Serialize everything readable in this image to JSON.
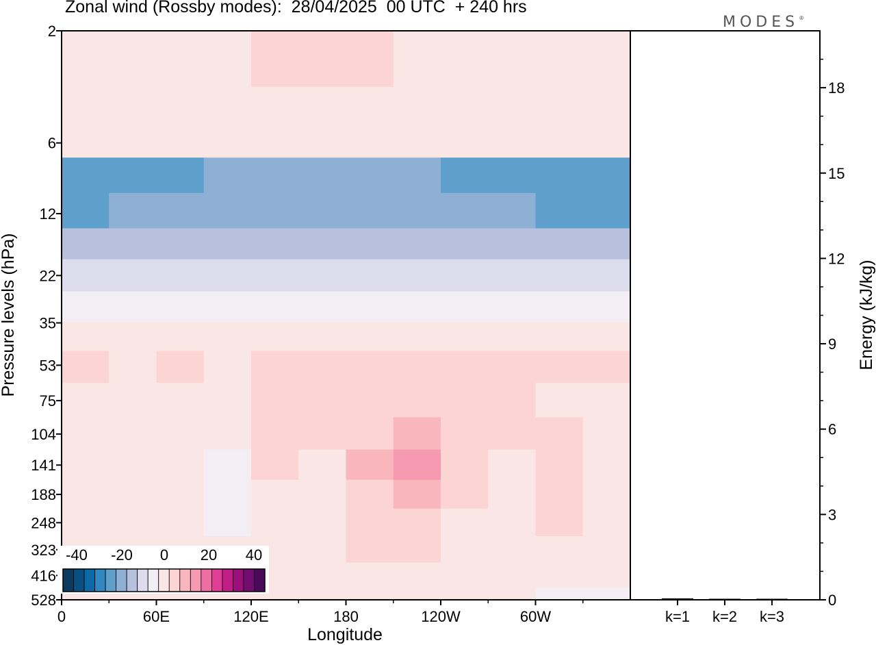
{
  "title": "Zonal wind (Rossby modes):  28/04/2025  00 UTC  + 240 hrs",
  "logo": "MODES",
  "logo_mark": "®",
  "chart_data": [
    {
      "type": "heatmap",
      "title": "Zonal wind (Rossby modes):  28/04/2025  00 UTC  + 240 hrs",
      "xlabel": "Longitude",
      "ylabel": "Pressure levels (hPa)",
      "x_ticks": [
        "0",
        "60E",
        "120E",
        "180",
        "120W",
        "60W"
      ],
      "y_ticks": [
        "2",
        "6",
        "12",
        "22",
        "35",
        "53",
        "75",
        "104",
        "141",
        "188",
        "248",
        "323",
        "416",
        "528"
      ],
      "y_scale": "log",
      "colorbar": {
        "ticks": [
          "-40",
          "-20",
          "0",
          "20",
          "40"
        ],
        "colors": [
          "#0d3a5c",
          "#0a4f80",
          "#0b6aa6",
          "#2f88c0",
          "#5e9fcc",
          "#8eb0d4",
          "#b7c0dc",
          "#dcdcec",
          "#f3eef4",
          "#fbe6e6",
          "#fcd4d4",
          "#f9b6bc",
          "#f59ab0",
          "#ee6ea2",
          "#de3f94",
          "#c21c86",
          "#9a0f7a",
          "#720c70",
          "#4a0a5a"
        ]
      },
      "rows": [
        {
          "p": "2",
          "values": [
            1,
            1,
            1,
            2,
            3,
            3,
            3,
            2,
            1,
            1,
            1,
            1
          ]
        },
        {
          "p": "6",
          "values": [
            -2,
            -2,
            -2,
            -2,
            -2,
            -2,
            -2,
            -2,
            -2,
            -2,
            -2,
            -2
          ]
        },
        {
          "p": "8",
          "values": [
            -27,
            -26,
            -24,
            -21,
            -21,
            -21,
            -21,
            -21,
            -23,
            -25,
            -27,
            -27
          ]
        },
        {
          "p": "12",
          "values": [
            -23,
            -22,
            -20,
            -18,
            -18,
            -18,
            -18,
            -18,
            -20,
            -22,
            -23,
            -23
          ]
        },
        {
          "p": "16",
          "values": [
            -16,
            -16,
            -16,
            -16,
            -16,
            -16,
            -16,
            -16,
            -16,
            -16,
            -16,
            -16
          ]
        },
        {
          "p": "22",
          "values": [
            -10,
            -10,
            -10,
            -10,
            -10,
            -10,
            -10,
            -10,
            -10,
            -10,
            -10,
            -10
          ]
        },
        {
          "p": "30",
          "values": [
            -3,
            -3,
            -3,
            -3,
            -3,
            -3,
            -3,
            -3,
            -3,
            -3,
            -3,
            -3
          ]
        },
        {
          "p": "40",
          "values": [
            1,
            1,
            1,
            2,
            2,
            2,
            2,
            2,
            2,
            2,
            1,
            1
          ]
        },
        {
          "p": "53",
          "values": [
            3,
            2,
            4,
            2,
            4,
            6,
            6,
            6,
            6,
            4,
            3,
            4
          ]
        },
        {
          "p": "75",
          "values": [
            1,
            1,
            1,
            1,
            3,
            5,
            6,
            5,
            4,
            3,
            2,
            1
          ]
        },
        {
          "p": "104",
          "values": [
            -1,
            1,
            0,
            -2,
            3,
            4,
            6,
            8,
            5,
            3,
            3,
            1
          ]
        },
        {
          "p": "141",
          "values": [
            -1,
            2,
            1,
            -3,
            3,
            2,
            8,
            14,
            4,
            2,
            5,
            1
          ]
        },
        {
          "p": "188",
          "values": [
            -1,
            2,
            2,
            -3,
            2,
            2,
            7,
            10,
            3,
            1,
            4,
            0
          ]
        },
        {
          "p": "248",
          "values": [
            -1,
            1,
            2,
            -3,
            2,
            1,
            4,
            6,
            2,
            1,
            3,
            0
          ]
        },
        {
          "p": "323",
          "values": [
            -1,
            1,
            1,
            -2,
            1,
            1,
            3,
            3,
            1,
            1,
            2,
            0
          ]
        },
        {
          "p": "416",
          "values": [
            -1,
            0,
            1,
            -2,
            1,
            1,
            2,
            1,
            1,
            0,
            -1,
            -2
          ]
        },
        {
          "p": "528",
          "values": [
            -1,
            -1,
            0,
            -2,
            0,
            1,
            1,
            0,
            0,
            -1,
            -3,
            -3
          ]
        }
      ]
    },
    {
      "type": "bar",
      "categories": [
        "k=1",
        "k=2",
        "k=3"
      ],
      "values": [
        0.05,
        0.02,
        0.01
      ],
      "ylabel": "Energy (kJ/kg)",
      "y_ticks": [
        "0",
        "3",
        "6",
        "9",
        "12",
        "15",
        "18"
      ],
      "ylim": [
        0,
        20
      ]
    }
  ]
}
